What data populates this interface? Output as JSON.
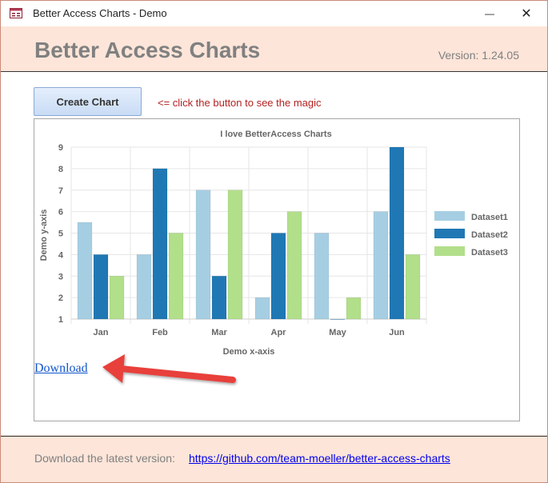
{
  "window": {
    "title": "Better Access Charts - Demo",
    "minimize_glyph": "—",
    "close_glyph": "✕"
  },
  "header": {
    "title": "Better Access Charts",
    "version": "Version: 1.24.05"
  },
  "toolbar": {
    "create_label": "Create Chart",
    "hint": "<= click the button to see the magic"
  },
  "download": {
    "label": "Download"
  },
  "footer": {
    "label": "Download the latest version:",
    "link": "https://github.com/team-moeller/better-access-charts"
  },
  "annotation": {
    "arrow_color": "#e8413a"
  },
  "chart_data": {
    "type": "bar",
    "title": "I love BetterAccess Charts",
    "xlabel": "Demo x-axis",
    "ylabel": "Demo y-axis",
    "categories": [
      "Jan",
      "Feb",
      "Mar",
      "Apr",
      "May",
      "Jun"
    ],
    "ylim": [
      1,
      9
    ],
    "yticks": [
      1,
      2,
      3,
      4,
      5,
      6,
      7,
      8,
      9
    ],
    "grid": true,
    "legend_position": "right",
    "series": [
      {
        "name": "Dataset1",
        "color": "#a6cee3",
        "values": [
          5.5,
          4,
          7,
          2,
          5,
          6
        ]
      },
      {
        "name": "Dataset2",
        "color": "#1f78b4",
        "values": [
          4,
          8,
          3,
          5,
          1,
          9
        ]
      },
      {
        "name": "Dataset3",
        "color": "#b2df8a",
        "values": [
          3,
          5,
          7,
          6,
          2,
          4
        ]
      }
    ]
  }
}
